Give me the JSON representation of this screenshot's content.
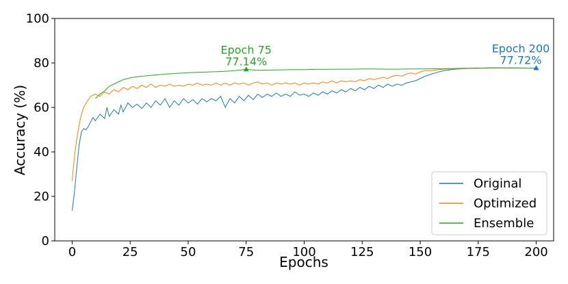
{
  "chart_data": {
    "type": "line",
    "xlabel": "Epochs",
    "ylabel": "Accuracy (%)",
    "xlim": [
      -7.5,
      207.5
    ],
    "ylim": [
      0,
      100
    ],
    "xticks": [
      0,
      25,
      50,
      75,
      100,
      125,
      150,
      175,
      200
    ],
    "yticks": [
      0,
      20,
      40,
      60,
      80,
      100
    ],
    "grid": false,
    "legend_position": "bottom-right",
    "series": [
      {
        "name": "Original",
        "color": "#1f77b4",
        "points": [
          [
            0,
            13.5
          ],
          [
            1,
            22
          ],
          [
            2,
            33
          ],
          [
            3,
            43
          ],
          [
            4,
            49
          ],
          [
            5,
            50.5
          ],
          [
            6,
            50
          ],
          [
            7,
            51.5
          ],
          [
            8,
            53.5
          ],
          [
            9,
            55.5
          ],
          [
            10,
            54
          ],
          [
            12,
            57
          ],
          [
            14,
            55
          ],
          [
            15,
            60
          ],
          [
            16,
            56
          ],
          [
            18,
            59
          ],
          [
            20,
            57
          ],
          [
            21,
            61
          ],
          [
            22,
            58
          ],
          [
            24,
            62
          ],
          [
            26,
            60
          ],
          [
            28,
            61.5
          ],
          [
            30,
            59.5
          ],
          [
            32,
            62
          ],
          [
            34,
            60
          ],
          [
            36,
            63
          ],
          [
            38,
            61
          ],
          [
            40,
            64
          ],
          [
            42,
            60
          ],
          [
            44,
            63
          ],
          [
            46,
            61
          ],
          [
            48,
            64
          ],
          [
            50,
            62
          ],
          [
            52,
            63.5
          ],
          [
            54,
            61.5
          ],
          [
            56,
            64
          ],
          [
            58,
            62.5
          ],
          [
            60,
            64
          ],
          [
            62,
            63
          ],
          [
            64,
            65
          ],
          [
            66,
            60
          ],
          [
            68,
            64
          ],
          [
            70,
            62
          ],
          [
            72,
            65
          ],
          [
            74,
            63
          ],
          [
            76,
            65.5
          ],
          [
            78,
            63.5
          ],
          [
            80,
            66
          ],
          [
            82,
            64.5
          ],
          [
            84,
            66
          ],
          [
            86,
            65
          ],
          [
            88,
            66.5
          ],
          [
            90,
            65
          ],
          [
            92,
            66
          ],
          [
            94,
            65
          ],
          [
            96,
            67
          ],
          [
            98,
            65.5
          ],
          [
            100,
            66
          ],
          [
            102,
            65
          ],
          [
            104,
            66.5
          ],
          [
            106,
            65.5
          ],
          [
            108,
            67
          ],
          [
            110,
            66
          ],
          [
            112,
            67.5
          ],
          [
            114,
            66.5
          ],
          [
            116,
            68
          ],
          [
            118,
            67
          ],
          [
            120,
            68.5
          ],
          [
            122,
            67.5
          ],
          [
            124,
            69
          ],
          [
            126,
            68
          ],
          [
            128,
            69.5
          ],
          [
            130,
            68.5
          ],
          [
            132,
            70
          ],
          [
            134,
            69
          ],
          [
            136,
            70.5
          ],
          [
            138,
            69.5
          ],
          [
            140,
            70.5
          ],
          [
            142,
            70
          ],
          [
            144,
            71
          ],
          [
            146,
            71.5
          ],
          [
            148,
            72
          ],
          [
            150,
            73
          ],
          [
            152,
            74
          ],
          [
            155,
            75
          ],
          [
            158,
            76
          ],
          [
            160,
            76.5
          ],
          [
            162,
            76.8
          ],
          [
            165,
            77.2
          ],
          [
            168,
            77.4
          ],
          [
            170,
            77.5
          ],
          [
            175,
            77.6
          ],
          [
            180,
            77.7
          ],
          [
            185,
            77.7
          ],
          [
            190,
            77.8
          ],
          [
            195,
            77.7
          ],
          [
            200,
            77.72
          ]
        ]
      },
      {
        "name": "Optimized",
        "color": "#ff7f0e",
        "points": [
          [
            0,
            27
          ],
          [
            1,
            38
          ],
          [
            2,
            46
          ],
          [
            3,
            52
          ],
          [
            4,
            57
          ],
          [
            5,
            60
          ],
          [
            6,
            62
          ],
          [
            7,
            63.5
          ],
          [
            8,
            65
          ],
          [
            9,
            65.5
          ],
          [
            10,
            66
          ],
          [
            12,
            65
          ],
          [
            14,
            67
          ],
          [
            16,
            66
          ],
          [
            18,
            68
          ],
          [
            20,
            67
          ],
          [
            22,
            69
          ],
          [
            24,
            68
          ],
          [
            26,
            69.5
          ],
          [
            28,
            68.5
          ],
          [
            30,
            70
          ],
          [
            32,
            69
          ],
          [
            34,
            70.5
          ],
          [
            36,
            69
          ],
          [
            38,
            70
          ],
          [
            40,
            69.5
          ],
          [
            42,
            70.5
          ],
          [
            44,
            69.5
          ],
          [
            46,
            70
          ],
          [
            48,
            69.5
          ],
          [
            50,
            70.5
          ],
          [
            52,
            70
          ],
          [
            54,
            71
          ],
          [
            56,
            70
          ],
          [
            58,
            70.5
          ],
          [
            60,
            70
          ],
          [
            62,
            71
          ],
          [
            64,
            70
          ],
          [
            66,
            71
          ],
          [
            68,
            70
          ],
          [
            70,
            71
          ],
          [
            72,
            70.5
          ],
          [
            74,
            71
          ],
          [
            76,
            70
          ],
          [
            78,
            71
          ],
          [
            80,
            71.5
          ],
          [
            82,
            70.5
          ],
          [
            84,
            71
          ],
          [
            86,
            70
          ],
          [
            88,
            71
          ],
          [
            90,
            70.5
          ],
          [
            92,
            71
          ],
          [
            94,
            70.5
          ],
          [
            96,
            71
          ],
          [
            98,
            70
          ],
          [
            100,
            71
          ],
          [
            102,
            70.5
          ],
          [
            104,
            71
          ],
          [
            106,
            70.5
          ],
          [
            108,
            71.5
          ],
          [
            110,
            71
          ],
          [
            112,
            72
          ],
          [
            114,
            71
          ],
          [
            116,
            72
          ],
          [
            118,
            71.5
          ],
          [
            120,
            72
          ],
          [
            122,
            71.5
          ],
          [
            124,
            72.5
          ],
          [
            126,
            72
          ],
          [
            128,
            73
          ],
          [
            130,
            72.5
          ],
          [
            132,
            73
          ],
          [
            134,
            73.5
          ],
          [
            136,
            73
          ],
          [
            138,
            74
          ],
          [
            140,
            74.5
          ],
          [
            142,
            74
          ],
          [
            144,
            75
          ],
          [
            146,
            75.5
          ],
          [
            148,
            75
          ],
          [
            150,
            76
          ],
          [
            152,
            76.5
          ],
          [
            155,
            76.5
          ],
          [
            158,
            77
          ],
          [
            160,
            77.2
          ],
          [
            165,
            77.4
          ],
          [
            170,
            77.5
          ],
          [
            175,
            77.6
          ],
          [
            180,
            77.8
          ],
          [
            185,
            77.7
          ],
          [
            190,
            77.8
          ],
          [
            195,
            77.7
          ],
          [
            200,
            77.7
          ]
        ]
      },
      {
        "name": "Ensemble",
        "color": "#2ca02c",
        "points": [
          [
            10,
            64
          ],
          [
            12,
            66
          ],
          [
            14,
            67.5
          ],
          [
            16,
            69.5
          ],
          [
            18,
            70.5
          ],
          [
            20,
            71.5
          ],
          [
            22,
            72.5
          ],
          [
            24,
            73
          ],
          [
            26,
            73.5
          ],
          [
            28,
            73.8
          ],
          [
            30,
            74
          ],
          [
            35,
            74.5
          ],
          [
            40,
            75
          ],
          [
            45,
            75.3
          ],
          [
            50,
            75.6
          ],
          [
            55,
            75.8
          ],
          [
            60,
            76
          ],
          [
            65,
            76.2
          ],
          [
            70,
            76.5
          ],
          [
            75,
            77.14
          ],
          [
            80,
            76.7
          ],
          [
            85,
            76.8
          ],
          [
            90,
            76.9
          ],
          [
            95,
            77
          ],
          [
            100,
            77
          ],
          [
            105,
            77.1
          ],
          [
            110,
            77.1
          ],
          [
            115,
            77.2
          ],
          [
            120,
            77.2
          ],
          [
            125,
            77.3
          ],
          [
            130,
            77.3
          ],
          [
            135,
            77.2
          ],
          [
            140,
            77.2
          ],
          [
            145,
            77.3
          ],
          [
            150,
            77.3
          ],
          [
            155,
            77.4
          ],
          [
            160,
            77.4
          ],
          [
            165,
            77.5
          ],
          [
            170,
            77.6
          ],
          [
            175,
            77.7
          ],
          [
            180,
            77.8
          ],
          [
            185,
            77.8
          ],
          [
            190,
            77.7
          ],
          [
            195,
            77.7
          ],
          [
            200,
            77.6
          ]
        ]
      }
    ],
    "annotations": [
      {
        "lines": [
          "Epoch 75",
          "77.14%"
        ],
        "x": 75,
        "y": 77.14,
        "color": "#2ca02c"
      },
      {
        "lines": [
          "Epoch 200",
          "77.72%"
        ],
        "x": 200,
        "y": 77.72,
        "color": "#1f77b4"
      }
    ]
  }
}
